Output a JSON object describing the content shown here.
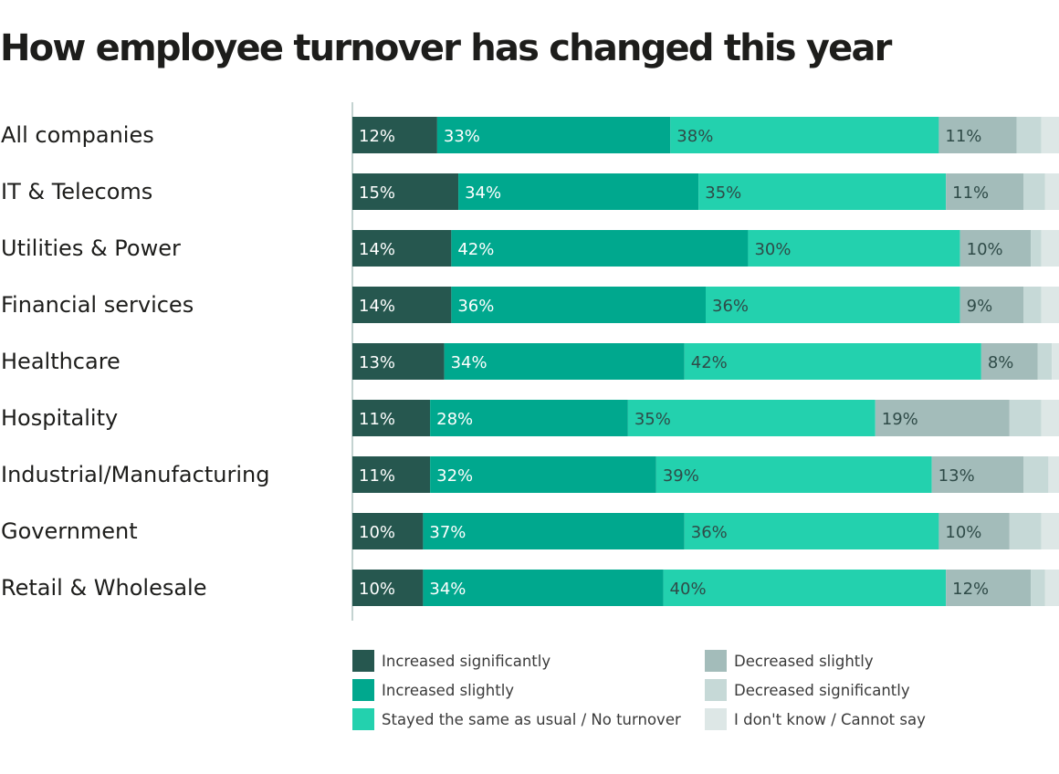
{
  "chart_data": {
    "type": "bar",
    "orientation": "horizontal",
    "stacked": true,
    "title": "How employee turnover has changed this year",
    "categories": [
      "All companies",
      "IT & Telecoms",
      "Utilities & Power",
      "Financial services",
      "Healthcare",
      "Hospitality",
      "Industrial/Manufacturing",
      "Government",
      "Retail & Wholesale"
    ],
    "series": [
      {
        "name": "Increased significantly",
        "color": "#26574f",
        "values": [
          12,
          15,
          14,
          14,
          13,
          11,
          11,
          10,
          10
        ]
      },
      {
        "name": "Increased slightly",
        "color": "#00a88e",
        "values": [
          33,
          34,
          42,
          36,
          34,
          28,
          32,
          37,
          34
        ]
      },
      {
        "name": "Stayed the same as usual / No turnover",
        "color": "#23d1ae",
        "values": [
          38,
          35,
          30,
          36,
          42,
          35,
          39,
          36,
          40
        ]
      },
      {
        "name": "Decreased slightly",
        "color": "#a3bcba",
        "values": [
          11,
          11,
          10,
          9,
          8,
          19,
          13,
          10,
          12
        ]
      },
      {
        "name": "Decreased significantly",
        "color": "#c6d9d7",
        "values": [
          3.5,
          3,
          1.5,
          2.5,
          2,
          4.5,
          3.5,
          4.5,
          2
        ]
      },
      {
        "name": "I don't know / Cannot say",
        "color": "#dde7e6",
        "values": [
          2.5,
          2,
          2.5,
          2.5,
          1,
          3,
          1.5,
          2.5,
          2
        ]
      }
    ],
    "labeled_series": 4,
    "xlim": [
      0,
      100
    ],
    "grid": false,
    "legend": "bottom"
  }
}
